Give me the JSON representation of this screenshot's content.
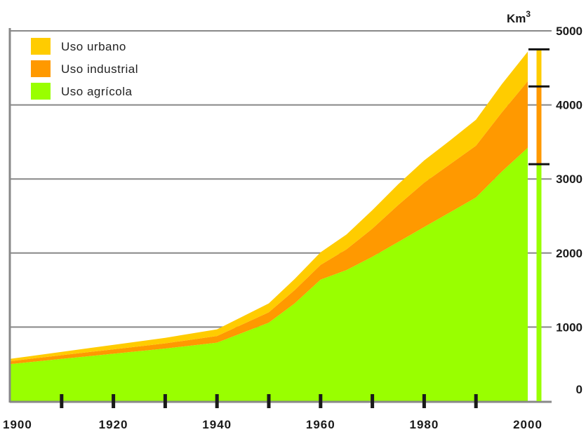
{
  "chart_data": {
    "type": "area",
    "stacked": true,
    "unit_label": "Km",
    "unit_superscript": "3",
    "ylim": [
      0,
      5000
    ],
    "y_ticks": [
      "0",
      "1000",
      "2000",
      "3000",
      "4000",
      "5000"
    ],
    "x_ticks": [
      "1900",
      "1920",
      "1940",
      "1960",
      "1980",
      "2000"
    ],
    "grid": true,
    "legend_position": "top-left",
    "x": [
      1900,
      1910,
      1920,
      1930,
      1940,
      1950,
      1955,
      1960,
      1965,
      1970,
      1975,
      1980,
      1985,
      1990,
      1995,
      2000
    ],
    "series": [
      {
        "name": "Uso agrícola",
        "color": "#99ff00",
        "values": [
          500,
          570,
          640,
          710,
          790,
          1060,
          1320,
          1640,
          1770,
          1950,
          2150,
          2350,
          2550,
          2750,
          3100,
          3420
        ]
      },
      {
        "name": "Uso industrial",
        "color": "#ff9900",
        "values": [
          40,
          50,
          60,
          70,
          90,
          140,
          180,
          200,
          280,
          380,
          500,
          600,
          650,
          700,
          800,
          900
        ]
      },
      {
        "name": "Uso urbano",
        "color": "#ffcc00",
        "values": [
          30,
          45,
          60,
          75,
          90,
          120,
          150,
          170,
          200,
          250,
          280,
          300,
          320,
          350,
          380,
          400
        ]
      }
    ],
    "bar_2000": {
      "totals": [
        3200,
        4250,
        4750
      ],
      "colors": [
        "#99ff00",
        "#ff9900",
        "#ffcc00"
      ]
    }
  }
}
